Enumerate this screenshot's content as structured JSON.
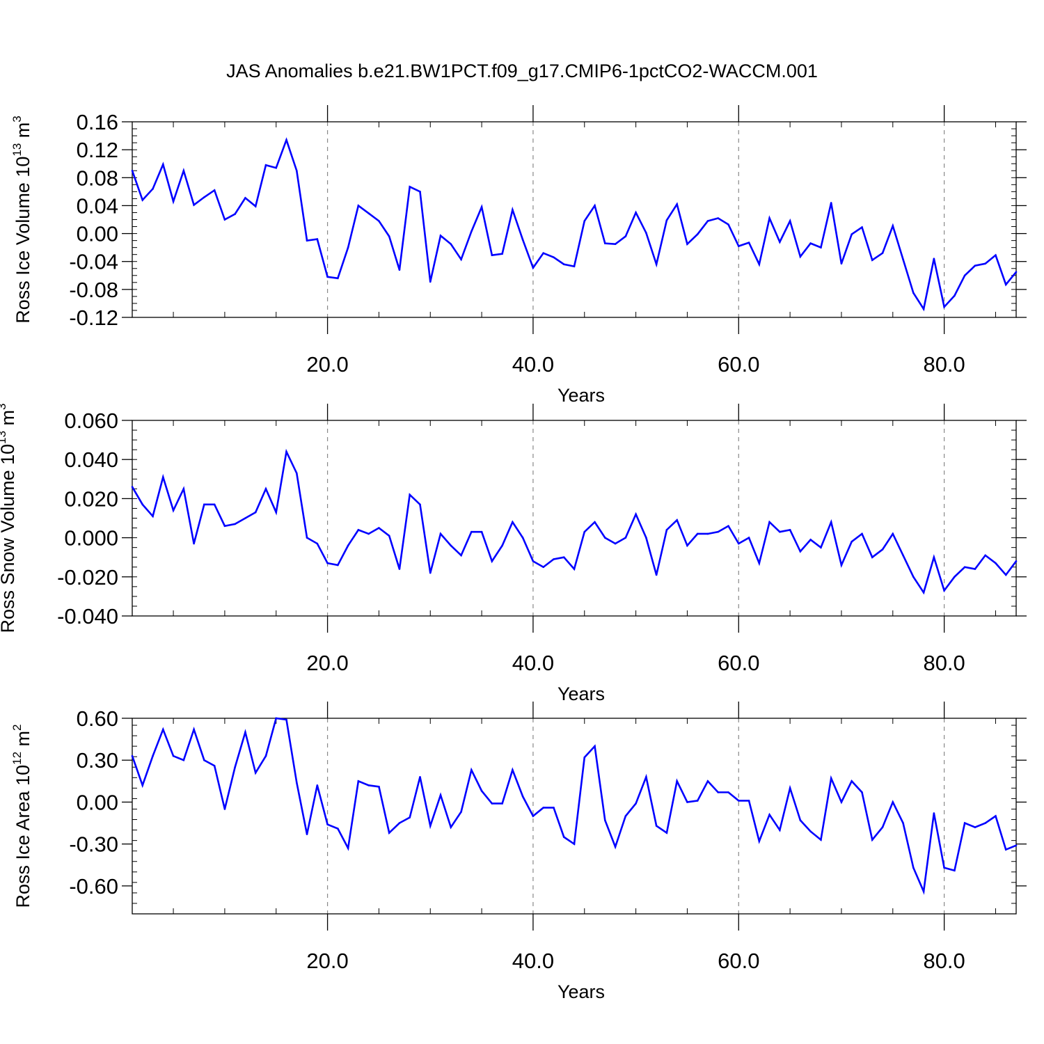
{
  "title": "JAS Anomalies b.e21.BW1PCT.f09_g17.CMIP6-1pctCO2-WACCM.001",
  "colors": {
    "line": "#0000ff",
    "axis": "#000000",
    "grid": "#888888"
  },
  "chart_data": [
    {
      "type": "line",
      "ylabel": {
        "main": "Ross Ice Volume 10",
        "sup": "13",
        "tail": " m",
        "sup2": "3"
      },
      "xlabel": "Years",
      "xlim": [
        1,
        87
      ],
      "ylim": [
        -0.12,
        0.16
      ],
      "yticks": [
        -0.12,
        -0.08,
        -0.04,
        0.0,
        0.04,
        0.08,
        0.12,
        0.16
      ],
      "yticklabels": [
        "-0.12",
        "-0.08",
        "-0.04",
        "0.00",
        "0.04",
        "0.08",
        "0.12",
        "0.16"
      ],
      "xticks": [
        20,
        40,
        60,
        80
      ],
      "xticklabels": [
        "20.0",
        "40.0",
        "60.0",
        "80.0"
      ],
      "grid": "x-dashed",
      "x_start": 1,
      "values": [
        0.09,
        0.048,
        0.064,
        0.099,
        0.046,
        0.09,
        0.041,
        0.052,
        0.062,
        0.02,
        0.028,
        0.051,
        0.039,
        0.098,
        0.094,
        0.134,
        0.09,
        -0.01,
        -0.008,
        -0.062,
        -0.064,
        -0.02,
        0.04,
        0.029,
        0.018,
        -0.004,
        -0.052,
        0.067,
        0.06,
        -0.069,
        -0.003,
        -0.015,
        -0.037,
        0.003,
        0.038,
        -0.031,
        -0.029,
        0.034,
        -0.009,
        -0.049,
        -0.028,
        -0.034,
        -0.044,
        -0.047,
        0.018,
        0.04,
        -0.014,
        -0.015,
        -0.004,
        0.03,
        0.001,
        -0.044,
        0.019,
        0.042,
        -0.015,
        -0.001,
        0.018,
        0.022,
        0.013,
        -0.018,
        -0.013,
        -0.044,
        0.022,
        -0.012,
        0.018,
        -0.033,
        -0.014,
        -0.02,
        0.044,
        -0.043,
        -0.001,
        0.009,
        -0.038,
        -0.028,
        0.011,
        -0.037,
        -0.085,
        -0.108,
        -0.036,
        -0.105,
        -0.089,
        -0.06,
        -0.046,
        -0.043,
        -0.031,
        -0.073,
        -0.055
      ]
    },
    {
      "type": "line",
      "ylabel": {
        "main": "Ross Snow Volume 10",
        "sup": "13",
        "tail": " m",
        "sup2": "3"
      },
      "xlabel": "Years",
      "xlim": [
        1,
        87
      ],
      "ylim": [
        -0.04,
        0.06
      ],
      "yticks": [
        -0.04,
        -0.02,
        0.0,
        0.02,
        0.04,
        0.06
      ],
      "yticklabels": [
        "-0.040",
        "-0.020",
        "0.000",
        "0.020",
        "0.040",
        "0.060"
      ],
      "xticks": [
        20,
        40,
        60,
        80
      ],
      "xticklabels": [
        "20.0",
        "40.0",
        "60.0",
        "80.0"
      ],
      "grid": "x-dashed",
      "x_start": 1,
      "values": [
        0.026,
        0.017,
        0.011,
        0.031,
        0.014,
        0.025,
        -0.003,
        0.017,
        0.017,
        0.006,
        0.007,
        0.01,
        0.013,
        0.025,
        0.013,
        0.044,
        0.033,
        0.0,
        -0.003,
        -0.013,
        -0.014,
        -0.004,
        0.004,
        0.002,
        0.005,
        0.001,
        -0.016,
        0.022,
        0.017,
        -0.018,
        0.002,
        -0.004,
        -0.009,
        0.003,
        0.003,
        -0.012,
        -0.004,
        0.008,
        0.0,
        -0.012,
        -0.015,
        -0.011,
        -0.01,
        -0.016,
        0.003,
        0.008,
        0.0,
        -0.003,
        0.0,
        0.012,
        0.0,
        -0.019,
        0.004,
        0.009,
        -0.004,
        0.002,
        0.002,
        0.003,
        0.006,
        -0.003,
        0.0,
        -0.013,
        0.008,
        0.003,
        0.004,
        -0.007,
        -0.001,
        -0.005,
        0.008,
        -0.014,
        -0.002,
        0.002,
        -0.01,
        -0.006,
        0.002,
        -0.009,
        -0.02,
        -0.028,
        -0.01,
        -0.027,
        -0.02,
        -0.015,
        -0.016,
        -0.009,
        -0.013,
        -0.019,
        -0.012
      ]
    },
    {
      "type": "line",
      "ylabel": {
        "main": "Ross Ice Area 10",
        "sup": "12",
        "tail": " m",
        "sup2": "2"
      },
      "xlabel": "Years",
      "xlim": [
        1,
        87
      ],
      "ylim": [
        -0.8,
        0.6
      ],
      "yticks": [
        -0.6,
        -0.3,
        0.0,
        0.3,
        0.6
      ],
      "yticklabels": [
        "-0.60",
        "-0.30",
        "0.00",
        "0.30",
        "0.60"
      ],
      "xticks": [
        20,
        40,
        60,
        80
      ],
      "xticklabels": [
        "20.0",
        "40.0",
        "60.0",
        "80.0"
      ],
      "grid": "x-dashed",
      "x_start": 1,
      "values": [
        0.33,
        0.12,
        0.33,
        0.52,
        0.33,
        0.3,
        0.52,
        0.3,
        0.26,
        -0.05,
        0.25,
        0.5,
        0.21,
        0.33,
        0.6,
        0.59,
        0.14,
        -0.23,
        0.12,
        -0.16,
        -0.19,
        -0.33,
        0.15,
        0.12,
        0.11,
        -0.22,
        -0.15,
        -0.11,
        0.18,
        -0.17,
        0.05,
        -0.18,
        -0.07,
        0.23,
        0.08,
        -0.01,
        -0.01,
        0.23,
        0.04,
        -0.1,
        -0.04,
        -0.04,
        -0.25,
        -0.3,
        0.32,
        0.4,
        -0.13,
        -0.32,
        -0.1,
        -0.01,
        0.18,
        -0.17,
        -0.22,
        0.15,
        0.0,
        0.01,
        0.15,
        0.07,
        0.07,
        0.01,
        0.01,
        -0.28,
        -0.09,
        -0.2,
        0.1,
        -0.13,
        -0.21,
        -0.27,
        0.17,
        0.0,
        0.15,
        0.07,
        -0.27,
        -0.18,
        0.0,
        -0.15,
        -0.47,
        -0.64,
        -0.08,
        -0.47,
        -0.49,
        -0.15,
        -0.18,
        -0.15,
        -0.1,
        -0.34,
        -0.31
      ]
    }
  ]
}
